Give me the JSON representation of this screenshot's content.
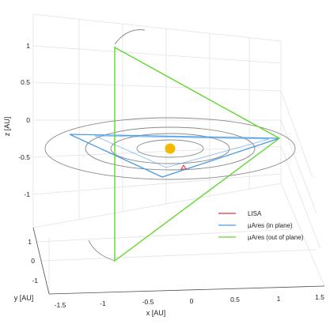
{
  "chart_data": {
    "type": "line",
    "projection": "3d-perspective",
    "xlabel": "x [AU]",
    "ylabel": "y [AU]",
    "zlabel": "z [AU]",
    "x_ticks": [
      "-1.5",
      "-1",
      "-0.5",
      "0",
      "0.5",
      "1",
      "1.5"
    ],
    "y_ticks": [
      "1",
      "0",
      "-1"
    ],
    "z_ticks": [
      "1",
      "0.5",
      "0",
      "-0.5",
      "-1"
    ],
    "xlim": [
      -1.5,
      1.5
    ],
    "ylim": [
      -1.5,
      1.5
    ],
    "zlim": [
      -1.3,
      1.3
    ],
    "grid": true,
    "legend_position": "lower-right",
    "series": [
      {
        "name": "LISA",
        "color": "#e8323c"
      },
      {
        "name": "µAres (in plane)",
        "color": "#4a9be8"
      },
      {
        "name": "µAres (out of plane)",
        "color": "#5fd82e"
      }
    ],
    "sun_color": "#f5b800",
    "orbit_radii_au": [
      0.4,
      0.7,
      1.0,
      1.5
    ]
  }
}
